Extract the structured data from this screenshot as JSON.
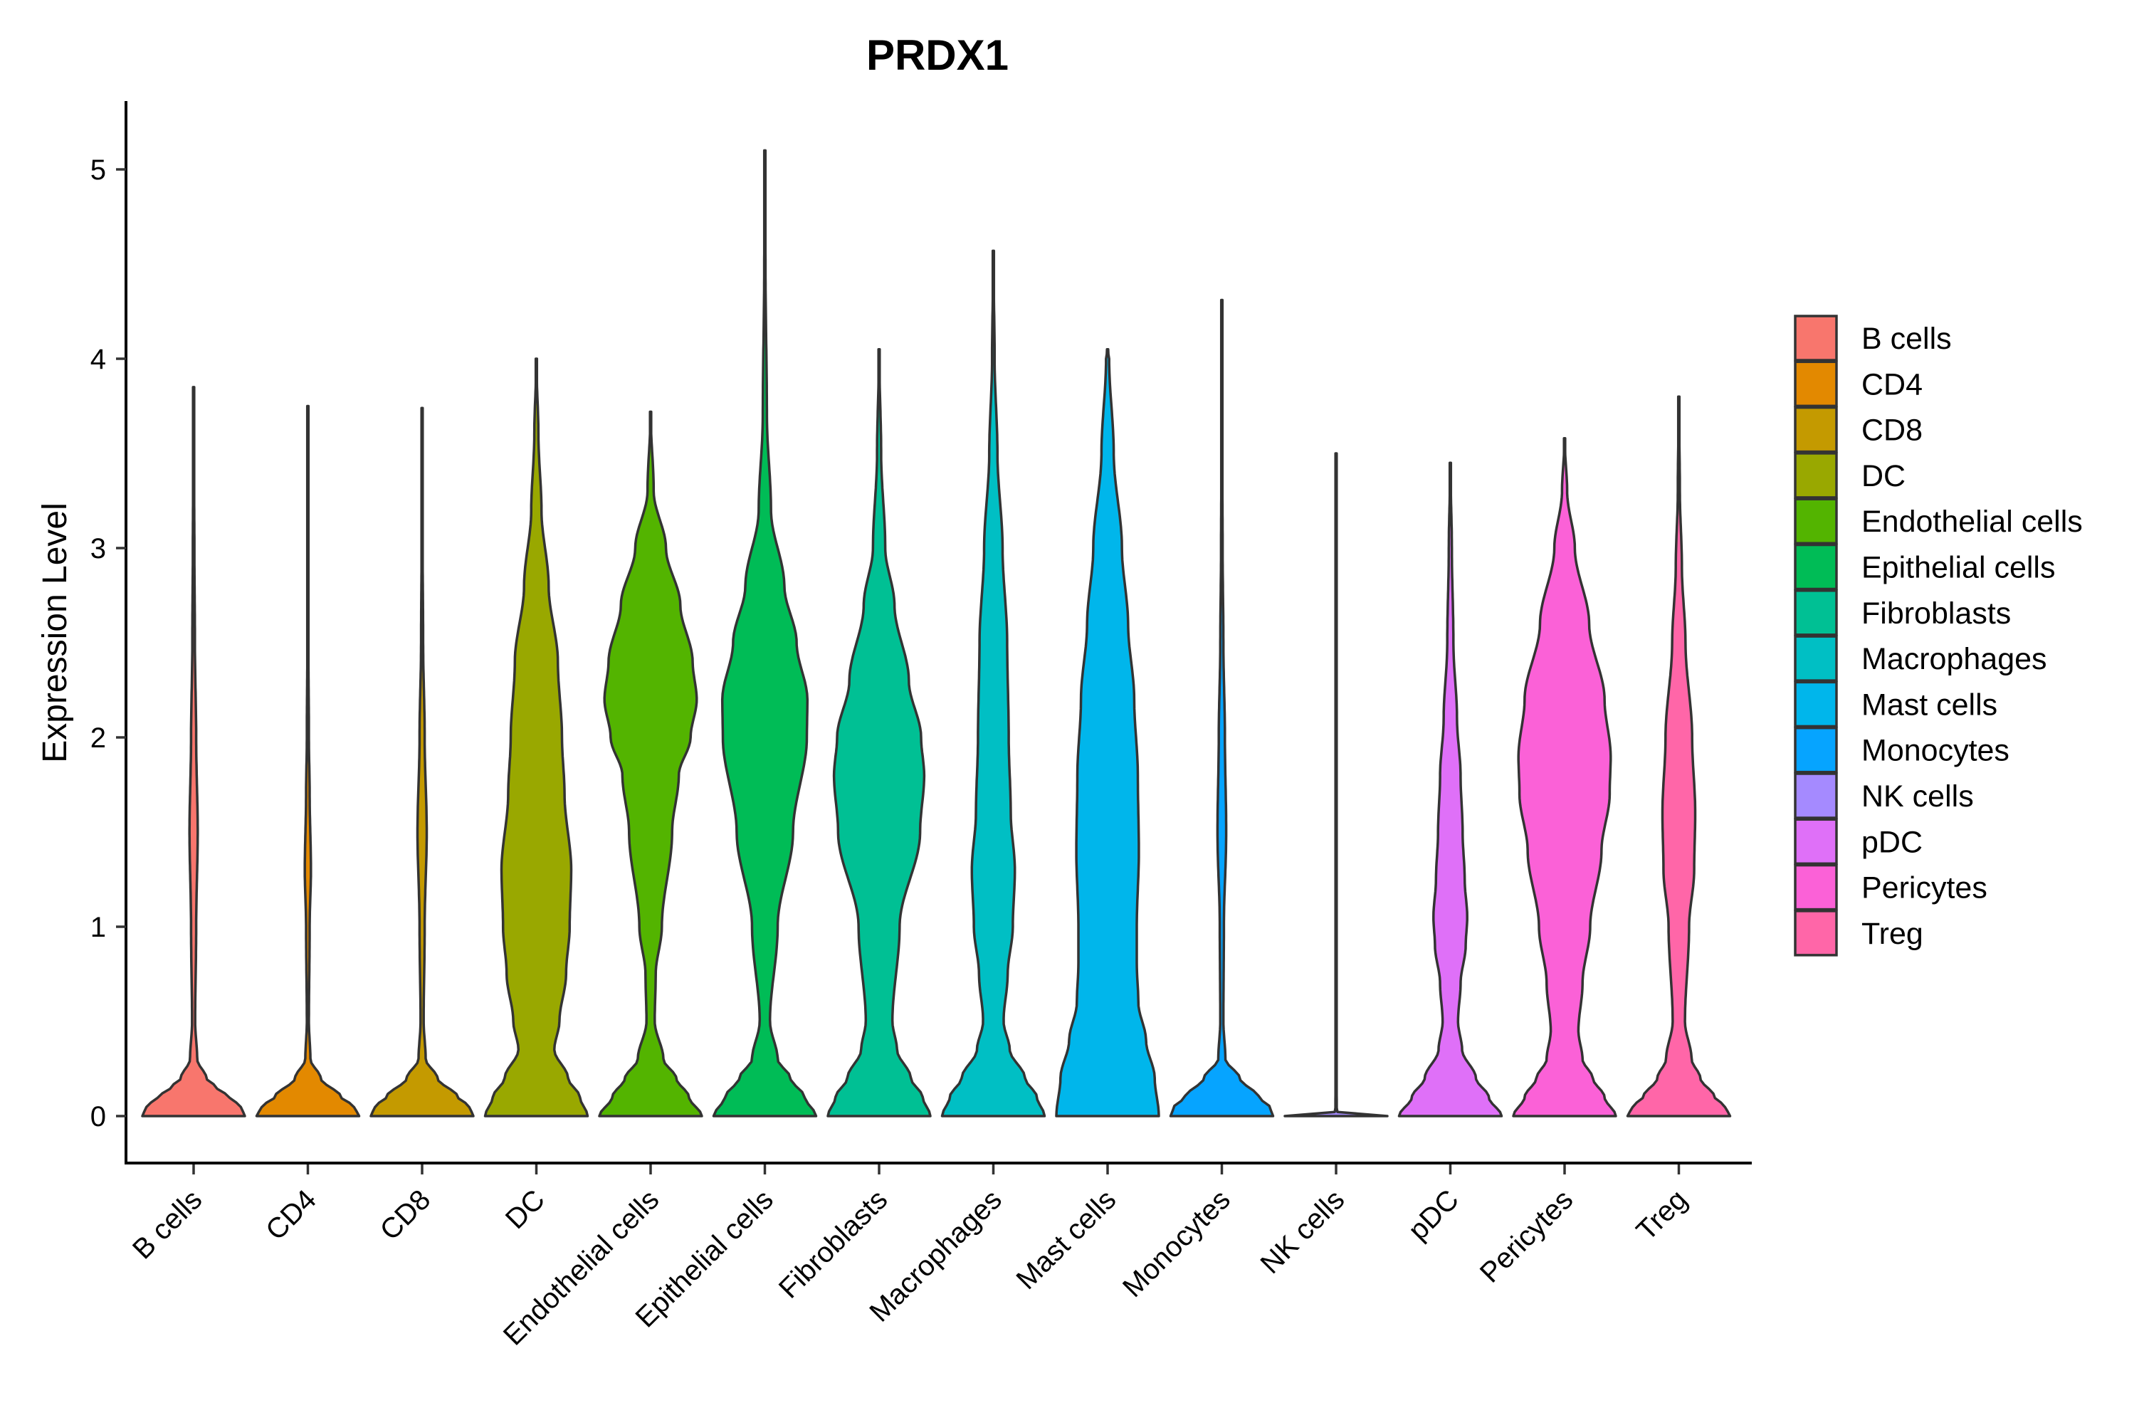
{
  "chart_data": {
    "type": "violin",
    "title": "PRDX1",
    "xlabel": "",
    "ylabel": "Expression Level",
    "ylim": [
      -0.25,
      5.35
    ],
    "yticks": [
      "0",
      "1",
      "2",
      "3",
      "4",
      "5"
    ],
    "grid": false,
    "legend_position": "right",
    "categories": [
      "B cells",
      "CD4",
      "CD8",
      "DC",
      "Endothelial cells",
      "Epithelial cells",
      "Fibroblasts",
      "Macrophages",
      "Mast cells",
      "Monocytes",
      "NK cells",
      "pDC",
      "Pericytes",
      "Treg"
    ],
    "series": [
      {
        "name": "B cells",
        "color": "#F8766D",
        "max": 3.85,
        "density": [
          [
            0,
            1
          ],
          [
            0.05,
            0.92
          ],
          [
            0.1,
            0.7
          ],
          [
            0.15,
            0.45
          ],
          [
            0.2,
            0.25
          ],
          [
            0.3,
            0.07
          ],
          [
            0.5,
            0.03
          ],
          [
            1.0,
            0.05
          ],
          [
            1.5,
            0.08
          ],
          [
            2.0,
            0.05
          ],
          [
            2.5,
            0.025
          ],
          [
            3.0,
            0.015
          ],
          [
            3.5,
            0.006
          ],
          [
            3.85,
            0
          ]
        ]
      },
      {
        "name": "CD4",
        "color": "#E38900",
        "max": 3.75,
        "density": [
          [
            0,
            1
          ],
          [
            0.05,
            0.9
          ],
          [
            0.1,
            0.65
          ],
          [
            0.2,
            0.25
          ],
          [
            0.3,
            0.05
          ],
          [
            0.5,
            0.02
          ],
          [
            1.0,
            0.035
          ],
          [
            1.3,
            0.06
          ],
          [
            1.7,
            0.035
          ],
          [
            2.0,
            0.02
          ],
          [
            2.5,
            0.01
          ],
          [
            3.0,
            0.006
          ],
          [
            3.75,
            0
          ]
        ]
      },
      {
        "name": "CD8",
        "color": "#C49A00",
        "max": 3.74,
        "density": [
          [
            0,
            1
          ],
          [
            0.05,
            0.92
          ],
          [
            0.1,
            0.7
          ],
          [
            0.2,
            0.3
          ],
          [
            0.3,
            0.07
          ],
          [
            0.5,
            0.03
          ],
          [
            1.0,
            0.05
          ],
          [
            1.5,
            0.09
          ],
          [
            2.0,
            0.05
          ],
          [
            2.5,
            0.02
          ],
          [
            3.0,
            0.01
          ],
          [
            3.74,
            0
          ]
        ]
      },
      {
        "name": "DC",
        "color": "#99A800",
        "max": 4.0,
        "density": [
          [
            0,
            1
          ],
          [
            0.1,
            0.85
          ],
          [
            0.2,
            0.62
          ],
          [
            0.35,
            0.35
          ],
          [
            0.5,
            0.45
          ],
          [
            0.75,
            0.58
          ],
          [
            1.0,
            0.65
          ],
          [
            1.3,
            0.68
          ],
          [
            1.7,
            0.55
          ],
          [
            2.0,
            0.5
          ],
          [
            2.4,
            0.42
          ],
          [
            2.8,
            0.24
          ],
          [
            3.2,
            0.1
          ],
          [
            3.6,
            0.04
          ],
          [
            4.0,
            0
          ]
        ]
      },
      {
        "name": "Endothelial cells",
        "color": "#53B400",
        "max": 3.72,
        "density": [
          [
            0,
            1
          ],
          [
            0.1,
            0.75
          ],
          [
            0.2,
            0.5
          ],
          [
            0.3,
            0.25
          ],
          [
            0.5,
            0.08
          ],
          [
            0.75,
            0.1
          ],
          [
            1.0,
            0.22
          ],
          [
            1.5,
            0.42
          ],
          [
            1.8,
            0.55
          ],
          [
            2.0,
            0.78
          ],
          [
            2.2,
            0.9
          ],
          [
            2.4,
            0.82
          ],
          [
            2.7,
            0.58
          ],
          [
            3.0,
            0.3
          ],
          [
            3.3,
            0.06
          ],
          [
            3.72,
            0
          ]
        ]
      },
      {
        "name": "Epithelial cells",
        "color": "#00BC56",
        "max": 5.1,
        "density": [
          [
            0,
            1
          ],
          [
            0.1,
            0.78
          ],
          [
            0.2,
            0.5
          ],
          [
            0.3,
            0.25
          ],
          [
            0.5,
            0.1
          ],
          [
            1.0,
            0.25
          ],
          [
            1.5,
            0.55
          ],
          [
            2.0,
            0.82
          ],
          [
            2.2,
            0.83
          ],
          [
            2.5,
            0.62
          ],
          [
            2.8,
            0.38
          ],
          [
            3.2,
            0.12
          ],
          [
            3.7,
            0.04
          ],
          [
            4.5,
            0.012
          ],
          [
            5.1,
            0
          ]
        ]
      },
      {
        "name": "Fibroblasts",
        "color": "#00C094",
        "max": 4.05,
        "density": [
          [
            0,
            1
          ],
          [
            0.1,
            0.85
          ],
          [
            0.2,
            0.62
          ],
          [
            0.35,
            0.35
          ],
          [
            0.5,
            0.26
          ],
          [
            1.0,
            0.4
          ],
          [
            1.5,
            0.8
          ],
          [
            1.8,
            0.88
          ],
          [
            2.0,
            0.82
          ],
          [
            2.3,
            0.58
          ],
          [
            2.7,
            0.3
          ],
          [
            3.0,
            0.12
          ],
          [
            3.5,
            0.04
          ],
          [
            4.05,
            0
          ]
        ]
      },
      {
        "name": "Macrophages",
        "color": "#00BFC4",
        "max": 4.57,
        "density": [
          [
            0,
            1
          ],
          [
            0.1,
            0.85
          ],
          [
            0.2,
            0.62
          ],
          [
            0.35,
            0.32
          ],
          [
            0.5,
            0.2
          ],
          [
            0.75,
            0.28
          ],
          [
            1.0,
            0.38
          ],
          [
            1.3,
            0.42
          ],
          [
            1.6,
            0.34
          ],
          [
            2.0,
            0.3
          ],
          [
            2.5,
            0.27
          ],
          [
            3.0,
            0.18
          ],
          [
            3.5,
            0.08
          ],
          [
            4.0,
            0.025
          ],
          [
            4.57,
            0
          ]
        ]
      },
      {
        "name": "Mast cells",
        "color": "#00B6EB",
        "max": 4.05,
        "density": [
          [
            0,
            1
          ],
          [
            0.2,
            0.92
          ],
          [
            0.4,
            0.75
          ],
          [
            0.6,
            0.6
          ],
          [
            0.8,
            0.57
          ],
          [
            1.0,
            0.57
          ],
          [
            1.4,
            0.61
          ],
          [
            1.8,
            0.59
          ],
          [
            2.2,
            0.52
          ],
          [
            2.6,
            0.4
          ],
          [
            3.0,
            0.28
          ],
          [
            3.5,
            0.12
          ],
          [
            4.0,
            0.03
          ],
          [
            4.05,
            0
          ]
        ]
      },
      {
        "name": "Monocytes",
        "color": "#06A4FF",
        "max": 4.31,
        "density": [
          [
            0,
            1
          ],
          [
            0.05,
            0.93
          ],
          [
            0.1,
            0.72
          ],
          [
            0.2,
            0.35
          ],
          [
            0.3,
            0.07
          ],
          [
            0.5,
            0.03
          ],
          [
            1.0,
            0.04
          ],
          [
            1.5,
            0.085
          ],
          [
            2.0,
            0.06
          ],
          [
            2.5,
            0.03
          ],
          [
            3.0,
            0.015
          ],
          [
            3.5,
            0.008
          ],
          [
            4.31,
            0
          ]
        ]
      },
      {
        "name": "NK cells",
        "color": "#A58AFF",
        "max": 3.5,
        "density": [
          [
            0,
            1
          ],
          [
            0.01,
            0.05
          ],
          [
            0.03,
            0.012
          ],
          [
            0.5,
            0.008
          ],
          [
            1.0,
            0.008
          ],
          [
            2.0,
            0.008
          ],
          [
            3.0,
            0.008
          ],
          [
            3.5,
            0
          ]
        ]
      },
      {
        "name": "pDC",
        "color": "#DF70F8",
        "max": 3.45,
        "density": [
          [
            0,
            1
          ],
          [
            0.1,
            0.75
          ],
          [
            0.2,
            0.5
          ],
          [
            0.35,
            0.23
          ],
          [
            0.5,
            0.15
          ],
          [
            0.7,
            0.2
          ],
          [
            0.9,
            0.3
          ],
          [
            1.05,
            0.33
          ],
          [
            1.25,
            0.28
          ],
          [
            1.5,
            0.24
          ],
          [
            1.8,
            0.2
          ],
          [
            2.1,
            0.13
          ],
          [
            2.5,
            0.06
          ],
          [
            3.0,
            0.03
          ],
          [
            3.45,
            0
          ]
        ]
      },
      {
        "name": "Pericytes",
        "color": "#FB61D7",
        "max": 3.58,
        "density": [
          [
            0,
            1
          ],
          [
            0.1,
            0.78
          ],
          [
            0.2,
            0.55
          ],
          [
            0.3,
            0.35
          ],
          [
            0.45,
            0.27
          ],
          [
            0.7,
            0.35
          ],
          [
            1.0,
            0.5
          ],
          [
            1.4,
            0.72
          ],
          [
            1.7,
            0.88
          ],
          [
            1.9,
            0.9
          ],
          [
            2.2,
            0.78
          ],
          [
            2.6,
            0.48
          ],
          [
            3.0,
            0.2
          ],
          [
            3.3,
            0.05
          ],
          [
            3.58,
            0
          ]
        ]
      },
      {
        "name": "Treg",
        "color": "#FF66A8",
        "max": 3.8,
        "density": [
          [
            0,
            1
          ],
          [
            0.05,
            0.9
          ],
          [
            0.1,
            0.7
          ],
          [
            0.2,
            0.42
          ],
          [
            0.3,
            0.25
          ],
          [
            0.5,
            0.12
          ],
          [
            1.0,
            0.2
          ],
          [
            1.3,
            0.3
          ],
          [
            1.6,
            0.32
          ],
          [
            2.0,
            0.26
          ],
          [
            2.5,
            0.13
          ],
          [
            2.9,
            0.06
          ],
          [
            3.3,
            0.02
          ],
          [
            3.8,
            0
          ]
        ]
      }
    ]
  }
}
